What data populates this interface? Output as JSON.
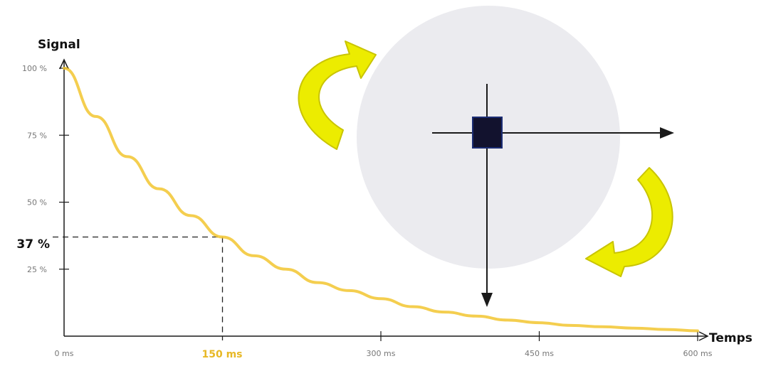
{
  "colors": {
    "curve": "#f2c630",
    "arrow": "#ecec00",
    "arrow_outline": "#c9c400",
    "disc": "#ebebef",
    "square": "#12122e",
    "axis": "#1a1a1a",
    "highlight_x": "#e7b825"
  },
  "chart_data": {
    "type": "line",
    "title": "",
    "xlabel": "Temps",
    "ylabel": "Signal",
    "xlim": [
      0,
      600
    ],
    "ylim": [
      0,
      100
    ],
    "x_ticks": [
      {
        "value": 0,
        "label": "0 ms"
      },
      {
        "value": 300,
        "label": "300 ms"
      },
      {
        "value": 450,
        "label": "450 ms"
      },
      {
        "value": 600,
        "label": "600 ms"
      }
    ],
    "y_ticks": [
      {
        "value": 100,
        "label": "100 %"
      },
      {
        "value": 75,
        "label": "75 %"
      },
      {
        "value": 50,
        "label": "50 %"
      },
      {
        "value": 25,
        "label": "25 %"
      }
    ],
    "highlight": {
      "x": 150,
      "y": 37,
      "x_label": "150 ms",
      "y_label": "37 %"
    },
    "series": [
      {
        "x": [
          0,
          30,
          60,
          90,
          120,
          150,
          180,
          210,
          240,
          270,
          300,
          330,
          360,
          390,
          420,
          450,
          480,
          510,
          540,
          570,
          600
        ],
        "y": [
          100,
          82,
          67,
          55,
          45,
          37,
          30,
          25,
          20,
          17,
          14,
          11,
          9,
          7.5,
          6,
          5,
          4,
          3.5,
          3,
          2.5,
          2
        ]
      }
    ]
  }
}
